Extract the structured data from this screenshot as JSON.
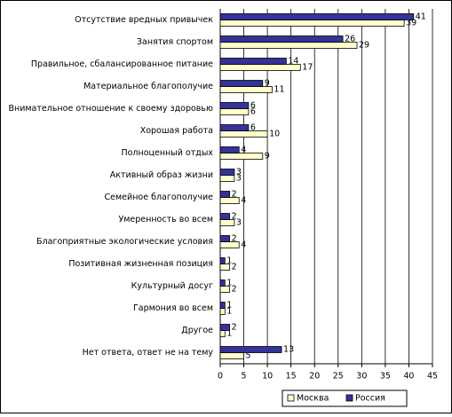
{
  "chart_data": {
    "type": "barh",
    "categories": [
      "Отсутствие вредных привычек",
      "Занятия спортом",
      "Правильное, сбалансированное питание",
      "Материальное благополучие",
      "Внимательное отношение к своему здоровью",
      "Хорошая работа",
      "Полноценный отдых",
      "Активный образ жизни",
      "Семейное благополучие",
      "Умеренность во всем",
      "Благоприятные экологические условия",
      "Позитивная жизненная позиция",
      "Культурный досуг",
      "Гармония во всем",
      "Другое",
      "Нет ответа, ответ не на тему"
    ],
    "series": [
      {
        "name": "Москва",
        "color": "#ffffcc",
        "values": [
          39,
          29,
          17,
          11,
          6,
          10,
          9,
          3,
          4,
          3,
          4,
          2,
          2,
          1,
          1,
          5
        ]
      },
      {
        "name": "Россия",
        "color": "#333399",
        "values": [
          41,
          26,
          14,
          9,
          6,
          6,
          4,
          3,
          2,
          2,
          2,
          1,
          1,
          1,
          2,
          13
        ]
      }
    ],
    "xlim": [
      0,
      45
    ],
    "xticks": [
      0,
      5,
      10,
      15,
      20,
      25,
      30,
      35,
      40,
      45
    ],
    "grid": true,
    "legend": "bottom"
  }
}
